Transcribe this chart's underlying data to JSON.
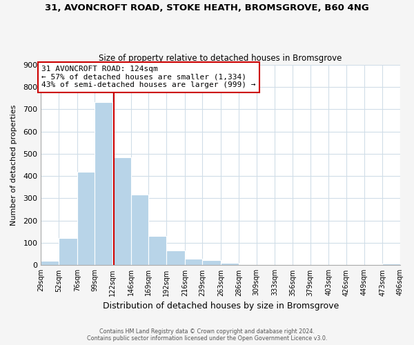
{
  "title_line1": "31, AVONCROFT ROAD, STOKE HEATH, BROMSGROVE, B60 4NG",
  "title_line2": "Size of property relative to detached houses in Bromsgrove",
  "xlabel": "Distribution of detached houses by size in Bromsgrove",
  "ylabel": "Number of detached properties",
  "bin_edges": [
    29,
    52,
    76,
    99,
    122,
    146,
    169,
    192,
    216,
    239,
    263,
    286,
    309,
    333,
    356,
    379,
    403,
    426,
    449,
    473,
    496
  ],
  "bin_counts": [
    20,
    122,
    420,
    733,
    483,
    317,
    132,
    65,
    30,
    22,
    10,
    0,
    0,
    0,
    0,
    0,
    0,
    0,
    0,
    8
  ],
  "bar_color": "#b8d4e8",
  "property_size": 124,
  "vline_color": "#cc0000",
  "annotation_line1": "31 AVONCROFT ROAD: 124sqm",
  "annotation_line2": "← 57% of detached houses are smaller (1,334)",
  "annotation_line3": "43% of semi-detached houses are larger (999) →",
  "annotation_box_edge_color": "#cc0000",
  "ylim": [
    0,
    900
  ],
  "yticks": [
    0,
    100,
    200,
    300,
    400,
    500,
    600,
    700,
    800,
    900
  ],
  "footer_line1": "Contains HM Land Registry data © Crown copyright and database right 2024.",
  "footer_line2": "Contains public sector information licensed under the Open Government Licence v3.0.",
  "bg_color": "#f5f5f5",
  "plot_bg_color": "#ffffff",
  "grid_color": "#d0dde8"
}
